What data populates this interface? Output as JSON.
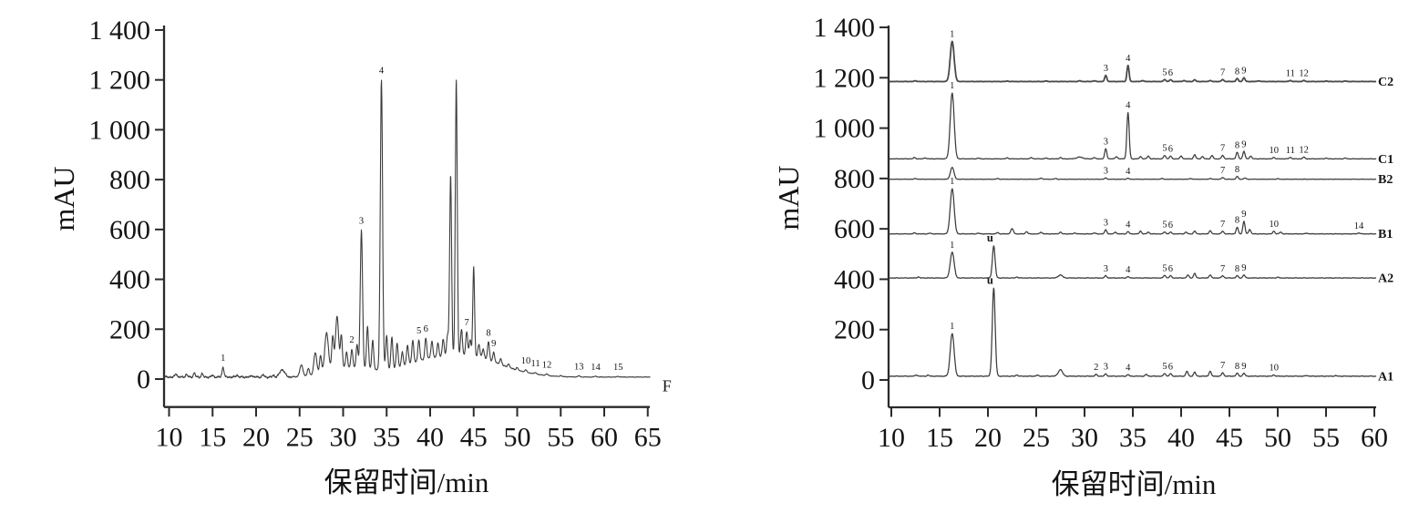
{
  "figure": {
    "background": "#ffffff",
    "axis_color": "#2b2b2b",
    "trace_color": "#3c3c3c",
    "text_color": "#141414"
  },
  "chart_data": [
    {
      "name": "total-chromatogram",
      "type": "line",
      "ylabel": "mAU",
      "xlabel": "保留时间/min",
      "xlim": [
        10,
        65
      ],
      "ylim": [
        0,
        1400
      ],
      "grid": false,
      "x_ticks": [
        10,
        15,
        20,
        25,
        30,
        35,
        40,
        45,
        50,
        55,
        60,
        65
      ],
      "y_ticks": [
        {
          "value": 0,
          "label": "0"
        },
        {
          "value": 200,
          "label": "200"
        },
        {
          "value": 400,
          "label": "400"
        },
        {
          "value": 600,
          "label": "600"
        },
        {
          "value": 800,
          "label": "800"
        },
        {
          "value": 1000,
          "label": "1 000"
        },
        {
          "value": 1200,
          "label": "1 200"
        },
        {
          "value": 1400,
          "label": "1 400"
        }
      ],
      "baseline": 8,
      "noise": {
        "amps": [
          4.5,
          2.5,
          1.2
        ],
        "breaks": [
          24,
          50
        ]
      },
      "humps": [
        [
          29.3,
          1.8,
          35
        ],
        [
          32.5,
          1.5,
          20
        ],
        [
          40.8,
          3.8,
          75
        ],
        [
          45.3,
          2.2,
          30
        ],
        [
          48.3,
          3.0,
          25
        ]
      ],
      "peaks": [
        [
          10.8,
          14
        ],
        [
          12.0,
          11
        ],
        [
          12.9,
          16
        ],
        [
          13.8,
          13
        ],
        [
          15.0,
          7
        ],
        [
          16.2,
          40,
          "1"
        ],
        [
          17.8,
          9
        ],
        [
          19.5,
          7
        ],
        [
          20.8,
          9
        ],
        [
          22.0,
          7
        ],
        [
          23.0,
          30,
          null,
          0.28
        ],
        [
          25.2,
          45,
          null,
          0.18
        ],
        [
          26.0,
          28
        ],
        [
          26.8,
          85,
          null,
          0.16
        ],
        [
          27.4,
          68
        ],
        [
          28.1,
          150,
          null,
          0.2
        ],
        [
          28.8,
          128
        ],
        [
          29.3,
          205,
          null,
          0.18
        ],
        [
          29.8,
          128
        ],
        [
          30.4,
          62
        ],
        [
          31.0,
          75,
          "2"
        ],
        [
          31.6,
          95
        ],
        [
          32.1,
          555,
          "3",
          0.13
        ],
        [
          32.8,
          172
        ],
        [
          33.4,
          118
        ],
        [
          34.4,
          1165,
          "4",
          0.13
        ],
        [
          35.0,
          140
        ],
        [
          35.6,
          128
        ],
        [
          36.2,
          98
        ],
        [
          36.8,
          58
        ],
        [
          37.4,
          78
        ],
        [
          38.0,
          88
        ],
        [
          38.7,
          85,
          "5"
        ],
        [
          39.5,
          85,
          "6"
        ],
        [
          40.2,
          68
        ],
        [
          40.9,
          56
        ],
        [
          41.5,
          70
        ],
        [
          42.0,
          85
        ],
        [
          42.35,
          730,
          null,
          0.11
        ],
        [
          43.0,
          1110,
          null,
          0.11
        ],
        [
          43.6,
          105
        ],
        [
          44.2,
          95,
          "7"
        ],
        [
          44.6,
          65
        ],
        [
          45.0,
          360,
          null,
          0.1
        ],
        [
          45.6,
          52
        ],
        [
          46.1,
          38
        ],
        [
          46.7,
          72,
          "8"
        ],
        [
          47.3,
          38,
          "9"
        ],
        [
          48.1,
          24
        ],
        [
          49.0,
          14
        ],
        [
          50.0,
          9
        ],
        [
          51.0,
          9,
          "10"
        ],
        [
          52.1,
          6,
          "11"
        ],
        [
          53.4,
          7,
          "12"
        ],
        [
          55.0,
          4
        ],
        [
          57.1,
          5,
          "13"
        ],
        [
          59.0,
          4,
          "14"
        ],
        [
          61.6,
          3,
          "15"
        ]
      ],
      "annotations": [
        {
          "text": "F",
          "t": 67.2,
          "mau": -50
        }
      ]
    },
    {
      "name": "stacked-chromatograms",
      "type": "line",
      "ylabel": "mAU",
      "xlabel": "保留时间/min",
      "xlim": [
        10,
        60
      ],
      "ylim": [
        0,
        1400
      ],
      "grid": false,
      "x_ticks": [
        10,
        15,
        20,
        25,
        30,
        35,
        40,
        45,
        50,
        55,
        60
      ],
      "y_ticks": [
        {
          "value": 0,
          "label": "0"
        },
        {
          "value": 200,
          "label": "200"
        },
        {
          "value": 400,
          "label": "400"
        },
        {
          "value": 600,
          "label": "600"
        },
        {
          "value": 800,
          "label": "800"
        },
        {
          "value": 1000,
          "label": "1 000"
        },
        {
          "value": 1200,
          "label": "1 200"
        },
        {
          "value": 1400,
          "label": "1 400"
        }
      ],
      "traces": [
        {
          "name": "A1",
          "offset": 15,
          "noise_amp": 1.4,
          "peaks": [
            [
              12.6,
              5
            ],
            [
              13.8,
              4
            ],
            [
              16.3,
              170,
              "1",
              0.2
            ],
            [
              20.6,
              350,
              "u",
              0.15
            ],
            [
              23.0,
              5
            ],
            [
              25.1,
              4
            ],
            [
              27.5,
              26,
              null,
              0.22
            ],
            [
              31.2,
              7,
              "2"
            ],
            [
              32.2,
              9,
              "3"
            ],
            [
              34.5,
              6,
              "4"
            ],
            [
              36.4,
              7
            ],
            [
              38.3,
              11,
              "5"
            ],
            [
              38.9,
              10,
              "6"
            ],
            [
              40.6,
              20
            ],
            [
              41.4,
              16
            ],
            [
              43.0,
              20
            ],
            [
              44.3,
              14,
              "7"
            ],
            [
              45.8,
              12,
              "8"
            ],
            [
              46.5,
              12,
              "9"
            ],
            [
              49.6,
              5,
              "10"
            ],
            [
              53.0,
              3
            ],
            [
              56.0,
              2
            ]
          ]
        },
        {
          "name": "A2",
          "offset": 405,
          "noise_amp": 1.2,
          "peaks": [
            [
              12.8,
              4
            ],
            [
              16.3,
              103,
              "1",
              0.2
            ],
            [
              20.6,
              127,
              "u",
              0.14
            ],
            [
              23.0,
              4
            ],
            [
              27.5,
              12,
              null,
              0.22
            ],
            [
              32.2,
              9,
              "3"
            ],
            [
              34.5,
              5,
              "4"
            ],
            [
              38.3,
              11,
              "5"
            ],
            [
              38.9,
              9,
              "6"
            ],
            [
              40.7,
              12
            ],
            [
              41.4,
              18
            ],
            [
              43.0,
              12
            ],
            [
              44.3,
              9,
              "7"
            ],
            [
              45.8,
              9,
              "8"
            ],
            [
              46.5,
              12,
              "9"
            ],
            [
              50.0,
              3
            ]
          ]
        },
        {
          "name": "B1",
          "offset": 580,
          "noise_amp": 1.2,
          "peaks": [
            [
              12.4,
              4
            ],
            [
              14.0,
              3
            ],
            [
              16.3,
              180,
              "1",
              0.2
            ],
            [
              19.0,
              3
            ],
            [
              21.0,
              5
            ],
            [
              22.5,
              20,
              null,
              0.14
            ],
            [
              24.0,
              9
            ],
            [
              25.5,
              7
            ],
            [
              27.5,
              7
            ],
            [
              29.0,
              4
            ],
            [
              31.0,
              4
            ],
            [
              32.2,
              16,
              "3"
            ],
            [
              33.2,
              7
            ],
            [
              34.5,
              9,
              "4"
            ],
            [
              35.8,
              11
            ],
            [
              36.6,
              7
            ],
            [
              38.3,
              8,
              "5"
            ],
            [
              38.9,
              7,
              "6"
            ],
            [
              40.5,
              7
            ],
            [
              41.4,
              11
            ],
            [
              43.0,
              13
            ],
            [
              44.3,
              11,
              "7"
            ],
            [
              45.8,
              26,
              "8"
            ],
            [
              46.5,
              50,
              "9"
            ],
            [
              47.1,
              18
            ],
            [
              49.6,
              11,
              "10"
            ],
            [
              50.3,
              7
            ],
            [
              53.0,
              3
            ],
            [
              58.4,
              4,
              "14"
            ]
          ]
        },
        {
          "name": "B2",
          "offset": 797,
          "noise_amp": 0.9,
          "peaks": [
            [
              12.5,
              3
            ],
            [
              16.3,
              48,
              null,
              0.18
            ],
            [
              21.0,
              3
            ],
            [
              25.5,
              5
            ],
            [
              27.0,
              3
            ],
            [
              32.2,
              5,
              "3"
            ],
            [
              34.5,
              4,
              "4"
            ],
            [
              38.0,
              3
            ],
            [
              41.0,
              3
            ],
            [
              43.0,
              3
            ],
            [
              44.3,
              7,
              "7"
            ],
            [
              45.8,
              11,
              "8"
            ],
            [
              46.6,
              5
            ],
            [
              50.0,
              2
            ]
          ]
        },
        {
          "name": "C1",
          "offset": 878,
          "noise_amp": 1.1,
          "peaks": [
            [
              12.4,
              5
            ],
            [
              13.5,
              4
            ],
            [
              16.3,
              262,
              "1",
              0.2
            ],
            [
              19.0,
              3
            ],
            [
              22.0,
              4
            ],
            [
              24.5,
              5
            ],
            [
              26.0,
              3
            ],
            [
              27.5,
              5
            ],
            [
              29.5,
              7,
              null,
              0.3
            ],
            [
              31.0,
              5
            ],
            [
              32.2,
              40,
              "3"
            ],
            [
              33.3,
              9
            ],
            [
              34.5,
              184,
              "4",
              0.12
            ],
            [
              35.8,
              9
            ],
            [
              36.6,
              11
            ],
            [
              38.3,
              14,
              "5"
            ],
            [
              38.9,
              11,
              "6"
            ],
            [
              40.0,
              11
            ],
            [
              41.4,
              16
            ],
            [
              42.2,
              9
            ],
            [
              43.2,
              13
            ],
            [
              44.3,
              14,
              "7"
            ],
            [
              45.8,
              26,
              "8"
            ],
            [
              46.5,
              30,
              "9"
            ],
            [
              47.2,
              11
            ],
            [
              49.6,
              6,
              "10"
            ],
            [
              51.3,
              6,
              "11"
            ],
            [
              52.7,
              7,
              "12"
            ],
            [
              55.0,
              3
            ],
            [
              57.0,
              3
            ]
          ]
        },
        {
          "name": "C2",
          "offset": 1185,
          "noise_amp": 0.7,
          "thick": true,
          "peaks": [
            [
              12.5,
              3
            ],
            [
              16.3,
              160,
              "1",
              0.2
            ],
            [
              22.0,
              2
            ],
            [
              26.0,
              2
            ],
            [
              29.5,
              3
            ],
            [
              31.0,
              3
            ],
            [
              32.2,
              24,
              "3"
            ],
            [
              34.5,
              64,
              "4"
            ],
            [
              36.0,
              4
            ],
            [
              38.3,
              8,
              "5"
            ],
            [
              38.9,
              7,
              "6"
            ],
            [
              40.3,
              4
            ],
            [
              41.4,
              7
            ],
            [
              43.0,
              4
            ],
            [
              44.3,
              8,
              "7"
            ],
            [
              45.8,
              12,
              "8"
            ],
            [
              46.5,
              15,
              "9"
            ],
            [
              48.0,
              3
            ],
            [
              51.3,
              4,
              "11"
            ],
            [
              52.7,
              4,
              "12"
            ],
            [
              55.0,
              2
            ],
            [
              57.0,
              2
            ]
          ]
        }
      ],
      "annotations": []
    }
  ]
}
